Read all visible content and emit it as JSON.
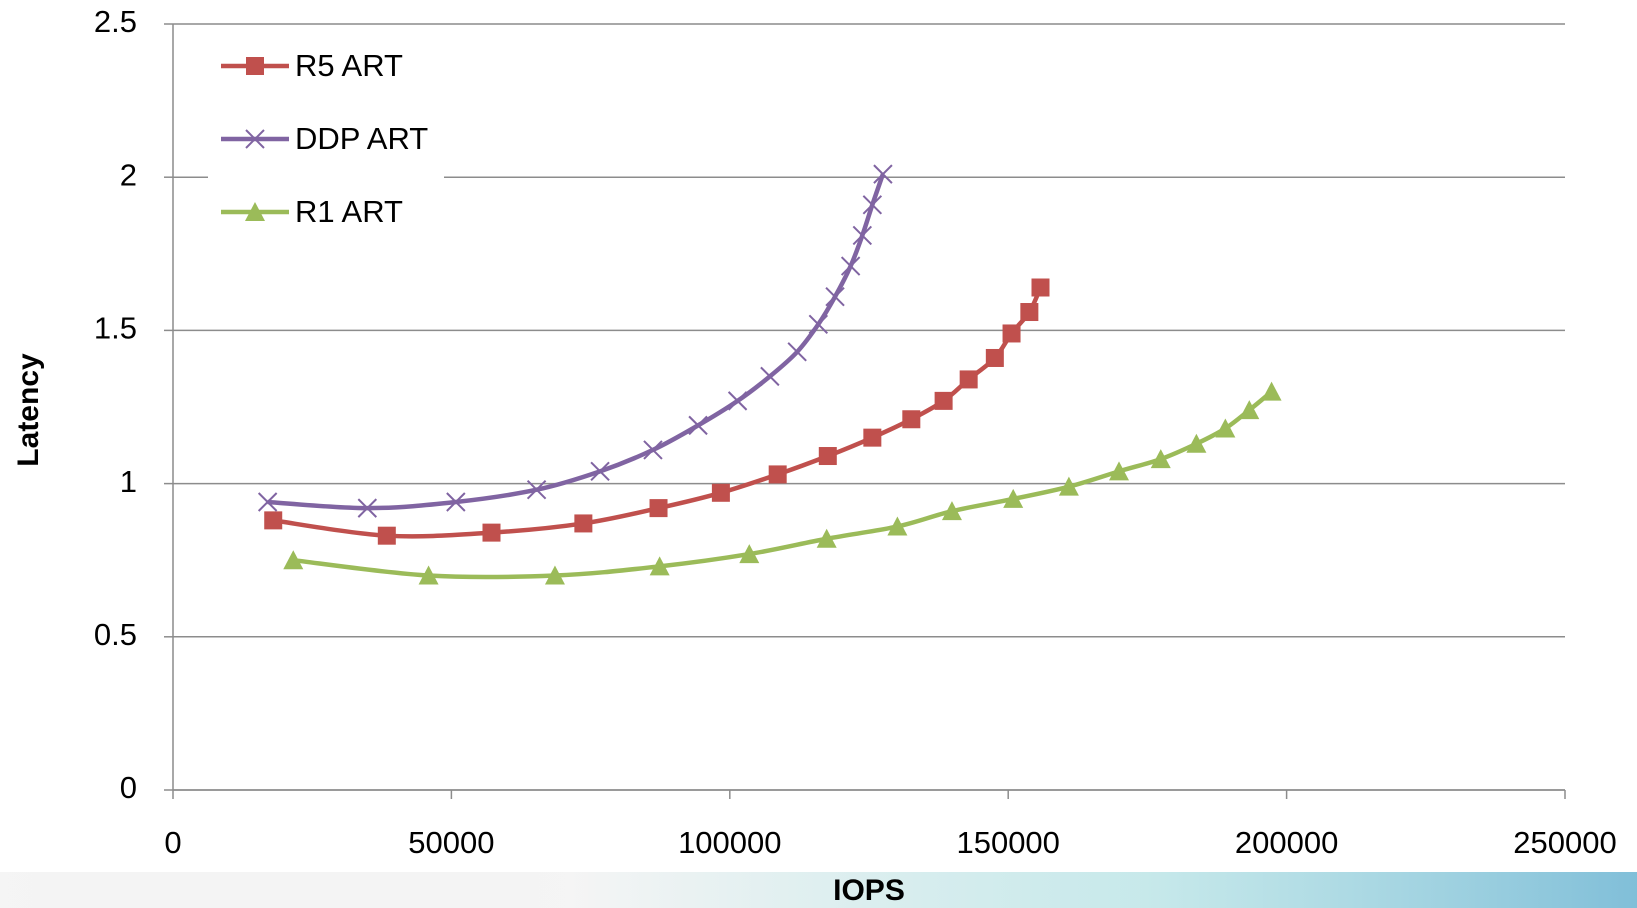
{
  "chart_data": {
    "type": "line",
    "x_label": "IOPS",
    "y_label": "Latency",
    "xlim": [
      0,
      250000
    ],
    "xticks": [
      0,
      50000,
      100000,
      150000,
      200000,
      250000
    ],
    "ylim": [
      0,
      2.5
    ],
    "yticks": [
      0,
      0.5,
      1,
      1.5,
      2,
      2.5
    ],
    "grid": true,
    "smooth": true,
    "legend": "upper-left",
    "series": [
      {
        "name": "R5 ART",
        "color": "#c0504d",
        "marker": "square",
        "x": [
          18000,
          38400,
          57200,
          73700,
          87200,
          98400,
          108600,
          117600,
          125600,
          132600,
          138400,
          142900,
          147600,
          150600,
          153800,
          155800
        ],
        "values": [
          0.88,
          0.83,
          0.84,
          0.87,
          0.92,
          0.97,
          1.03,
          1.09,
          1.15,
          1.21,
          1.27,
          1.34,
          1.41,
          1.49,
          1.56,
          1.64
        ]
      },
      {
        "name": "DDP ART",
        "color": "#8064a2",
        "marker": "cross",
        "x": [
          17000,
          34900,
          50800,
          65300,
          76700,
          86200,
          94300,
          101400,
          107200,
          112100,
          115900,
          118900,
          121700,
          123800,
          125600,
          127500
        ],
        "values": [
          0.94,
          0.92,
          0.94,
          0.98,
          1.04,
          1.11,
          1.19,
          1.27,
          1.35,
          1.43,
          1.52,
          1.61,
          1.71,
          1.81,
          1.91,
          2.01
        ]
      },
      {
        "name": "R1 ART",
        "color": "#9bbb59",
        "marker": "triangle",
        "x": [
          21600,
          45900,
          68600,
          87400,
          103500,
          117400,
          130100,
          139900,
          150900,
          160900,
          169900,
          177400,
          183800,
          189000,
          193300,
          197300
        ],
        "values": [
          0.75,
          0.7,
          0.7,
          0.73,
          0.77,
          0.82,
          0.86,
          0.91,
          0.95,
          0.99,
          1.04,
          1.08,
          1.13,
          1.18,
          1.24,
          1.3
        ]
      }
    ]
  }
}
